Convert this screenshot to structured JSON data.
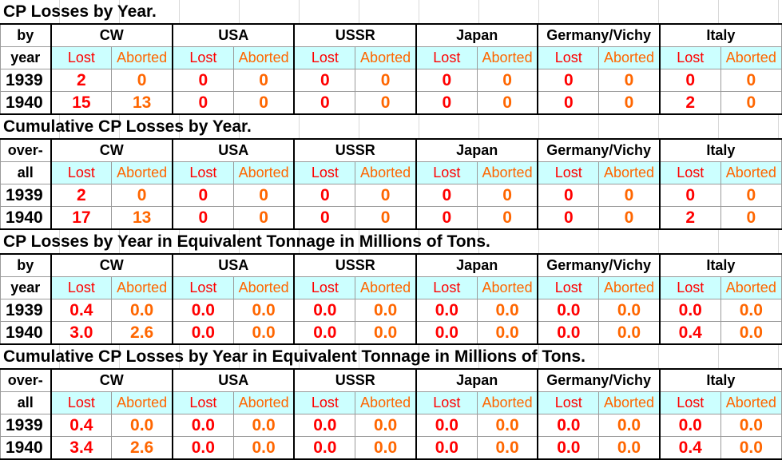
{
  "countries": [
    "CW",
    "USA",
    "USSR",
    "Japan",
    "Germany/Vichy",
    "Italy"
  ],
  "sub_labels": {
    "lost": "Lost",
    "aborted": "Aborted"
  },
  "sections": [
    {
      "title": "CP Losses by Year.",
      "hdr_top": "by",
      "hdr_bottom": "year",
      "rows": [
        {
          "year": "1939",
          "values": [
            "2",
            "0",
            "0",
            "0",
            "0",
            "0",
            "0",
            "0",
            "0",
            "0",
            "0",
            "0"
          ]
        },
        {
          "year": "1940",
          "values": [
            "15",
            "13",
            "0",
            "0",
            "0",
            "0",
            "0",
            "0",
            "0",
            "0",
            "2",
            "0"
          ]
        }
      ]
    },
    {
      "title": "Cumulative CP Losses by Year.",
      "hdr_top": "over-",
      "hdr_bottom": "all",
      "rows": [
        {
          "year": "1939",
          "values": [
            "2",
            "0",
            "0",
            "0",
            "0",
            "0",
            "0",
            "0",
            "0",
            "0",
            "0",
            "0"
          ]
        },
        {
          "year": "1940",
          "values": [
            "17",
            "13",
            "0",
            "0",
            "0",
            "0",
            "0",
            "0",
            "0",
            "0",
            "2",
            "0"
          ]
        }
      ]
    },
    {
      "title": "CP Losses by Year in Equivalent Tonnage in Millions of Tons.",
      "hdr_top": "by",
      "hdr_bottom": "year",
      "rows": [
        {
          "year": "1939",
          "values": [
            "0.4",
            "0.0",
            "0.0",
            "0.0",
            "0.0",
            "0.0",
            "0.0",
            "0.0",
            "0.0",
            "0.0",
            "0.0",
            "0.0"
          ]
        },
        {
          "year": "1940",
          "values": [
            "3.0",
            "2.6",
            "0.0",
            "0.0",
            "0.0",
            "0.0",
            "0.0",
            "0.0",
            "0.0",
            "0.0",
            "0.4",
            "0.0"
          ]
        }
      ]
    },
    {
      "title": "Cumulative CP Losses by Year in Equivalent Tonnage in Millions of Tons.",
      "hdr_top": "over-",
      "hdr_bottom": "all",
      "rows": [
        {
          "year": "1939",
          "values": [
            "0.4",
            "0.0",
            "0.0",
            "0.0",
            "0.0",
            "0.0",
            "0.0",
            "0.0",
            "0.0",
            "0.0",
            "0.0",
            "0.0"
          ]
        },
        {
          "year": "1940",
          "values": [
            "3.4",
            "2.6",
            "0.0",
            "0.0",
            "0.0",
            "0.0",
            "0.0",
            "0.0",
            "0.0",
            "0.0",
            "0.4",
            "0.0"
          ]
        }
      ]
    }
  ]
}
